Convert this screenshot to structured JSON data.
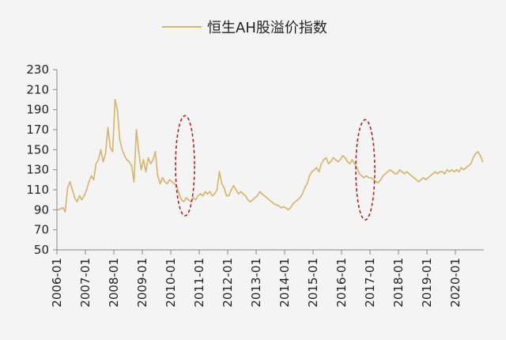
{
  "chart_data": {
    "type": "line",
    "title": "",
    "xlabel": "",
    "ylabel": "",
    "ylim": [
      50,
      230
    ],
    "yticks": [
      50,
      70,
      90,
      110,
      130,
      150,
      170,
      190,
      210,
      230
    ],
    "xticks": [
      "2006-01",
      "2007-01",
      "2008-01",
      "2009-01",
      "2010-01",
      "2011-01",
      "2012-01",
      "2013-01",
      "2014-01",
      "2015-01",
      "2016-01",
      "2017-01",
      "2018-01",
      "2019-01",
      "2020-01"
    ],
    "xlim": [
      "2006-01",
      "2020-12"
    ],
    "legend_position": "top-center",
    "grid": false,
    "colors": {
      "series": "#d8b36a",
      "annotation": "#b22222"
    },
    "series": [
      {
        "name": "恒生AH股溢价指数",
        "points": [
          [
            "2006-01",
            90
          ],
          [
            "2006-03",
            92
          ],
          [
            "2006-04",
            88
          ],
          [
            "2006-05",
            112
          ],
          [
            "2006-06",
            118
          ],
          [
            "2006-07",
            110
          ],
          [
            "2006-08",
            102
          ],
          [
            "2006-09",
            98
          ],
          [
            "2006-10",
            104
          ],
          [
            "2006-11",
            100
          ],
          [
            "2006-12",
            104
          ],
          [
            "2007-01",
            110
          ],
          [
            "2007-02",
            118
          ],
          [
            "2007-03",
            124
          ],
          [
            "2007-04",
            120
          ],
          [
            "2007-05",
            136
          ],
          [
            "2007-06",
            140
          ],
          [
            "2007-07",
            150
          ],
          [
            "2007-08",
            138
          ],
          [
            "2007-09",
            146
          ],
          [
            "2007-10",
            172
          ],
          [
            "2007-11",
            152
          ],
          [
            "2007-12",
            148
          ],
          [
            "2008-01",
            200
          ],
          [
            "2008-02",
            190
          ],
          [
            "2008-03",
            160
          ],
          [
            "2008-04",
            150
          ],
          [
            "2008-05",
            144
          ],
          [
            "2008-06",
            140
          ],
          [
            "2008-07",
            138
          ],
          [
            "2008-08",
            134
          ],
          [
            "2008-09",
            118
          ],
          [
            "2008-10",
            170
          ],
          [
            "2008-11",
            148
          ],
          [
            "2008-12",
            130
          ],
          [
            "2009-01",
            140
          ],
          [
            "2009-02",
            128
          ],
          [
            "2009-03",
            142
          ],
          [
            "2009-04",
            136
          ],
          [
            "2009-05",
            140
          ],
          [
            "2009-06",
            148
          ],
          [
            "2009-07",
            124
          ],
          [
            "2009-08",
            116
          ],
          [
            "2009-09",
            122
          ],
          [
            "2009-10",
            118
          ],
          [
            "2009-11",
            116
          ],
          [
            "2009-12",
            120
          ],
          [
            "2010-01",
            118
          ],
          [
            "2010-02",
            116
          ],
          [
            "2010-03",
            114
          ],
          [
            "2010-04",
            106
          ],
          [
            "2010-05",
            100
          ],
          [
            "2010-06",
            98
          ],
          [
            "2010-07",
            102
          ],
          [
            "2010-08",
            100
          ],
          [
            "2010-09",
            98
          ],
          [
            "2010-10",
            102
          ],
          [
            "2010-11",
            100
          ],
          [
            "2010-12",
            104
          ],
          [
            "2011-01",
            106
          ],
          [
            "2011-02",
            104
          ],
          [
            "2011-03",
            108
          ],
          [
            "2011-04",
            106
          ],
          [
            "2011-05",
            108
          ],
          [
            "2011-06",
            104
          ],
          [
            "2011-07",
            106
          ],
          [
            "2011-08",
            110
          ],
          [
            "2011-09",
            128
          ],
          [
            "2011-10",
            116
          ],
          [
            "2011-11",
            112
          ],
          [
            "2011-12",
            104
          ],
          [
            "2012-01",
            104
          ],
          [
            "2012-02",
            110
          ],
          [
            "2012-03",
            114
          ],
          [
            "2012-04",
            110
          ],
          [
            "2012-05",
            106
          ],
          [
            "2012-06",
            108
          ],
          [
            "2012-07",
            106
          ],
          [
            "2012-08",
            104
          ],
          [
            "2012-09",
            100
          ],
          [
            "2012-10",
            98
          ],
          [
            "2012-11",
            100
          ],
          [
            "2012-12",
            102
          ],
          [
            "2013-01",
            104
          ],
          [
            "2013-02",
            108
          ],
          [
            "2013-03",
            106
          ],
          [
            "2013-04",
            104
          ],
          [
            "2013-05",
            102
          ],
          [
            "2013-06",
            100
          ],
          [
            "2013-07",
            98
          ],
          [
            "2013-08",
            96
          ],
          [
            "2013-09",
            95
          ],
          [
            "2013-10",
            94
          ],
          [
            "2013-11",
            92
          ],
          [
            "2013-12",
            93
          ],
          [
            "2014-01",
            92
          ],
          [
            "2014-02",
            90
          ],
          [
            "2014-03",
            92
          ],
          [
            "2014-04",
            96
          ],
          [
            "2014-05",
            98
          ],
          [
            "2014-06",
            100
          ],
          [
            "2014-07",
            102
          ],
          [
            "2014-08",
            106
          ],
          [
            "2014-09",
            112
          ],
          [
            "2014-10",
            116
          ],
          [
            "2014-11",
            124
          ],
          [
            "2014-12",
            128
          ],
          [
            "2015-01",
            130
          ],
          [
            "2015-02",
            132
          ],
          [
            "2015-03",
            128
          ],
          [
            "2015-04",
            136
          ],
          [
            "2015-05",
            140
          ],
          [
            "2015-06",
            142
          ],
          [
            "2015-07",
            136
          ],
          [
            "2015-08",
            138
          ],
          [
            "2015-09",
            142
          ],
          [
            "2015-10",
            140
          ],
          [
            "2015-11",
            138
          ],
          [
            "2015-12",
            140
          ],
          [
            "2016-01",
            144
          ],
          [
            "2016-02",
            142
          ],
          [
            "2016-03",
            138
          ],
          [
            "2016-04",
            136
          ],
          [
            "2016-05",
            140
          ],
          [
            "2016-06",
            136
          ],
          [
            "2016-07",
            132
          ],
          [
            "2016-08",
            126
          ],
          [
            "2016-09",
            124
          ],
          [
            "2016-10",
            122
          ],
          [
            "2016-11",
            124
          ],
          [
            "2016-12",
            122
          ],
          [
            "2017-01",
            122
          ],
          [
            "2017-02",
            120
          ],
          [
            "2017-03",
            118
          ],
          [
            "2017-04",
            117
          ],
          [
            "2017-05",
            120
          ],
          [
            "2017-06",
            124
          ],
          [
            "2017-07",
            126
          ],
          [
            "2017-08",
            128
          ],
          [
            "2017-09",
            130
          ],
          [
            "2017-10",
            128
          ],
          [
            "2017-11",
            126
          ],
          [
            "2017-12",
            126
          ],
          [
            "2018-01",
            130
          ],
          [
            "2018-02",
            128
          ],
          [
            "2018-03",
            126
          ],
          [
            "2018-04",
            128
          ],
          [
            "2018-05",
            126
          ],
          [
            "2018-06",
            124
          ],
          [
            "2018-07",
            122
          ],
          [
            "2018-08",
            120
          ],
          [
            "2018-09",
            118
          ],
          [
            "2018-10",
            120
          ],
          [
            "2018-11",
            122
          ],
          [
            "2018-12",
            120
          ],
          [
            "2019-01",
            122
          ],
          [
            "2019-02",
            124
          ],
          [
            "2019-03",
            126
          ],
          [
            "2019-04",
            128
          ],
          [
            "2019-05",
            126
          ],
          [
            "2019-06",
            128
          ],
          [
            "2019-07",
            128
          ],
          [
            "2019-08",
            126
          ],
          [
            "2019-09",
            130
          ],
          [
            "2019-10",
            128
          ],
          [
            "2019-11",
            130
          ],
          [
            "2019-12",
            128
          ],
          [
            "2020-01",
            130
          ],
          [
            "2020-02",
            128
          ],
          [
            "2020-03",
            132
          ],
          [
            "2020-04",
            130
          ],
          [
            "2020-05",
            132
          ],
          [
            "2020-06",
            134
          ],
          [
            "2020-07",
            136
          ],
          [
            "2020-08",
            142
          ],
          [
            "2020-09",
            146
          ],
          [
            "2020-10",
            148
          ],
          [
            "2020-11",
            144
          ],
          [
            "2020-12",
            138
          ]
        ]
      }
    ],
    "annotations": [
      {
        "type": "dashed-ellipse",
        "x_center": "2010-07",
        "y_center": 134,
        "x_halfspan_months": 4,
        "y_halfspan": 50
      },
      {
        "type": "dashed-ellipse",
        "x_center": "2016-11",
        "y_center": 130,
        "x_halfspan_months": 4,
        "y_halfspan": 50
      }
    ]
  }
}
